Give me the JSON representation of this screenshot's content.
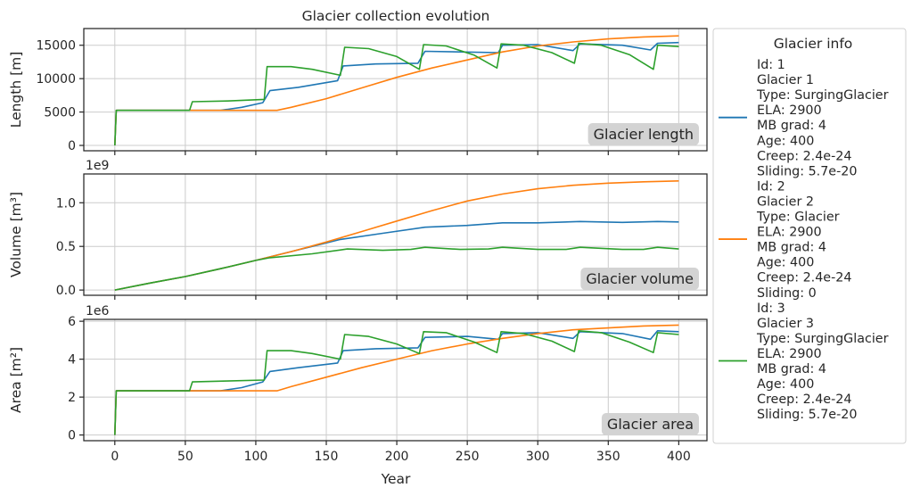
{
  "chart_data": {
    "type": "line",
    "title": "Glacier collection evolution",
    "xlabel": "Year",
    "xlim": [
      -22,
      420
    ],
    "xticks": [
      0,
      50,
      100,
      150,
      200,
      250,
      300,
      350,
      400
    ],
    "subplots": [
      {
        "name": "length",
        "ylabel": "Length [m]",
        "ylim": [
          -800,
          17500
        ],
        "yticks": [
          0,
          5000,
          10000,
          15000
        ],
        "ytick_labels": [
          "0",
          "5000",
          "10000",
          "15000"
        ],
        "offset_label": "",
        "annotation": "Glacier length"
      },
      {
        "name": "volume",
        "ylabel": "Volume [m³]",
        "ylim": [
          -0.06,
          1.33
        ],
        "yticks": [
          0,
          0.5,
          1.0
        ],
        "ytick_labels": [
          "0.0",
          "0.5",
          "1.0"
        ],
        "offset_label": "1e9",
        "annotation": "Glacier volume"
      },
      {
        "name": "area",
        "ylabel": "Area [m²]",
        "ylim": [
          -0.3,
          6.1
        ],
        "yticks": [
          0,
          2,
          4,
          6
        ],
        "ytick_labels": [
          "0",
          "2",
          "4",
          "6"
        ],
        "offset_label": "1e6",
        "annotation": "Glacier area"
      }
    ],
    "series": [
      {
        "color": "#1f77b4",
        "length": [
          [
            0,
            0
          ],
          [
            1,
            5250
          ],
          [
            75,
            5250
          ],
          [
            90,
            5700
          ],
          [
            105,
            6400
          ],
          [
            110,
            8200
          ],
          [
            130,
            8700
          ],
          [
            158,
            9700
          ],
          [
            162,
            11900
          ],
          [
            185,
            12200
          ],
          [
            215,
            12300
          ],
          [
            220,
            14100
          ],
          [
            272,
            13900
          ],
          [
            275,
            15000
          ],
          [
            300,
            15100
          ],
          [
            325,
            14200
          ],
          [
            330,
            15200
          ],
          [
            360,
            15000
          ],
          [
            380,
            14300
          ],
          [
            385,
            15300
          ],
          [
            400,
            15400
          ]
        ],
        "volume": [
          [
            0,
            0
          ],
          [
            25,
            0.08
          ],
          [
            50,
            0.155
          ],
          [
            75,
            0.245
          ],
          [
            100,
            0.34
          ],
          [
            120,
            0.42
          ],
          [
            140,
            0.5
          ],
          [
            160,
            0.58
          ],
          [
            190,
            0.65
          ],
          [
            220,
            0.72
          ],
          [
            250,
            0.74
          ],
          [
            275,
            0.77
          ],
          [
            300,
            0.77
          ],
          [
            330,
            0.785
          ],
          [
            360,
            0.775
          ],
          [
            385,
            0.785
          ],
          [
            400,
            0.78
          ]
        ],
        "area": [
          [
            0,
            0
          ],
          [
            1,
            2.33
          ],
          [
            75,
            2.33
          ],
          [
            90,
            2.5
          ],
          [
            105,
            2.8
          ],
          [
            110,
            3.35
          ],
          [
            130,
            3.55
          ],
          [
            158,
            3.8
          ],
          [
            162,
            4.45
          ],
          [
            185,
            4.55
          ],
          [
            215,
            4.6
          ],
          [
            220,
            5.15
          ],
          [
            250,
            5.2
          ],
          [
            272,
            5.05
          ],
          [
            275,
            5.35
          ],
          [
            300,
            5.4
          ],
          [
            325,
            5.1
          ],
          [
            330,
            5.45
          ],
          [
            360,
            5.35
          ],
          [
            380,
            5.05
          ],
          [
            385,
            5.5
          ],
          [
            400,
            5.45
          ]
        ]
      },
      {
        "color": "#ff7f0e",
        "length": [
          [
            0,
            0
          ],
          [
            1,
            5250
          ],
          [
            115,
            5250
          ],
          [
            125,
            5700
          ],
          [
            150,
            7000
          ],
          [
            175,
            8600
          ],
          [
            200,
            10200
          ],
          [
            225,
            11600
          ],
          [
            250,
            12800
          ],
          [
            275,
            14000
          ],
          [
            300,
            14900
          ],
          [
            325,
            15500
          ],
          [
            350,
            15950
          ],
          [
            375,
            16250
          ],
          [
            400,
            16400
          ]
        ],
        "volume": [
          [
            0,
            0
          ],
          [
            25,
            0.08
          ],
          [
            50,
            0.155
          ],
          [
            75,
            0.245
          ],
          [
            100,
            0.34
          ],
          [
            125,
            0.44
          ],
          [
            150,
            0.55
          ],
          [
            175,
            0.67
          ],
          [
            200,
            0.79
          ],
          [
            225,
            0.91
          ],
          [
            250,
            1.02
          ],
          [
            275,
            1.1
          ],
          [
            300,
            1.16
          ],
          [
            325,
            1.2
          ],
          [
            350,
            1.225
          ],
          [
            375,
            1.24
          ],
          [
            400,
            1.25
          ]
        ],
        "area": [
          [
            0,
            0
          ],
          [
            1,
            2.33
          ],
          [
            115,
            2.33
          ],
          [
            125,
            2.55
          ],
          [
            150,
            3.05
          ],
          [
            175,
            3.55
          ],
          [
            200,
            4.0
          ],
          [
            225,
            4.45
          ],
          [
            250,
            4.8
          ],
          [
            275,
            5.1
          ],
          [
            300,
            5.35
          ],
          [
            325,
            5.55
          ],
          [
            350,
            5.65
          ],
          [
            375,
            5.75
          ],
          [
            400,
            5.8
          ]
        ]
      },
      {
        "color": "#2ca02c",
        "length": [
          [
            0,
            0
          ],
          [
            1,
            5250
          ],
          [
            53,
            5250
          ],
          [
            55,
            6550
          ],
          [
            80,
            6650
          ],
          [
            106,
            6900
          ],
          [
            108,
            11800
          ],
          [
            125,
            11800
          ],
          [
            140,
            11400
          ],
          [
            160,
            10500
          ],
          [
            163,
            14700
          ],
          [
            180,
            14500
          ],
          [
            200,
            13300
          ],
          [
            216,
            11400
          ],
          [
            219,
            15100
          ],
          [
            235,
            14900
          ],
          [
            255,
            13500
          ],
          [
            271,
            11600
          ],
          [
            274,
            15200
          ],
          [
            290,
            15000
          ],
          [
            310,
            13900
          ],
          [
            326,
            12300
          ],
          [
            329,
            15300
          ],
          [
            345,
            15000
          ],
          [
            365,
            13600
          ],
          [
            382,
            11400
          ],
          [
            385,
            15000
          ],
          [
            400,
            14800
          ]
        ],
        "volume": [
          [
            0,
            0
          ],
          [
            25,
            0.08
          ],
          [
            50,
            0.155
          ],
          [
            75,
            0.245
          ],
          [
            100,
            0.34
          ],
          [
            110,
            0.37
          ],
          [
            140,
            0.415
          ],
          [
            165,
            0.47
          ],
          [
            190,
            0.455
          ],
          [
            210,
            0.465
          ],
          [
            220,
            0.49
          ],
          [
            245,
            0.465
          ],
          [
            265,
            0.47
          ],
          [
            275,
            0.49
          ],
          [
            300,
            0.465
          ],
          [
            320,
            0.465
          ],
          [
            330,
            0.49
          ],
          [
            360,
            0.465
          ],
          [
            375,
            0.465
          ],
          [
            385,
            0.49
          ],
          [
            400,
            0.47
          ]
        ],
        "area": [
          [
            0,
            0
          ],
          [
            1,
            2.33
          ],
          [
            53,
            2.33
          ],
          [
            55,
            2.8
          ],
          [
            80,
            2.85
          ],
          [
            106,
            2.9
          ],
          [
            108,
            4.45
          ],
          [
            125,
            4.45
          ],
          [
            140,
            4.3
          ],
          [
            160,
            4.0
          ],
          [
            163,
            5.3
          ],
          [
            180,
            5.2
          ],
          [
            200,
            4.8
          ],
          [
            216,
            4.3
          ],
          [
            219,
            5.45
          ],
          [
            235,
            5.4
          ],
          [
            255,
            4.9
          ],
          [
            271,
            4.35
          ],
          [
            274,
            5.45
          ],
          [
            290,
            5.35
          ],
          [
            310,
            4.95
          ],
          [
            326,
            4.4
          ],
          [
            329,
            5.5
          ],
          [
            345,
            5.4
          ],
          [
            365,
            4.9
          ],
          [
            382,
            4.35
          ],
          [
            385,
            5.4
          ],
          [
            400,
            5.3
          ]
        ]
      }
    ],
    "legend": {
      "title": "Glacier info",
      "placement": "outside-right",
      "entries": [
        {
          "color": "#1f77b4",
          "lines": [
            "Id: 1",
            "Glacier 1",
            "Type: SurgingGlacier",
            "ELA: 2900",
            "MB grad: 4",
            "Age: 400",
            "Creep: 2.4e-24",
            "Sliding: 5.7e-20"
          ]
        },
        {
          "color": "#ff7f0e",
          "lines": [
            "Id: 2",
            "Glacier 2",
            "Type: Glacier",
            "ELA: 2900",
            "MB grad: 4",
            "Age: 400",
            "Creep: 2.4e-24",
            "Sliding: 0"
          ]
        },
        {
          "color": "#2ca02c",
          "lines": [
            "Id: 3",
            "Glacier 3",
            "Type: SurgingGlacier",
            "ELA: 2900",
            "MB grad: 4",
            "Age: 400",
            "Creep: 2.4e-24",
            "Sliding: 5.7e-20"
          ]
        }
      ]
    },
    "grid": true
  }
}
